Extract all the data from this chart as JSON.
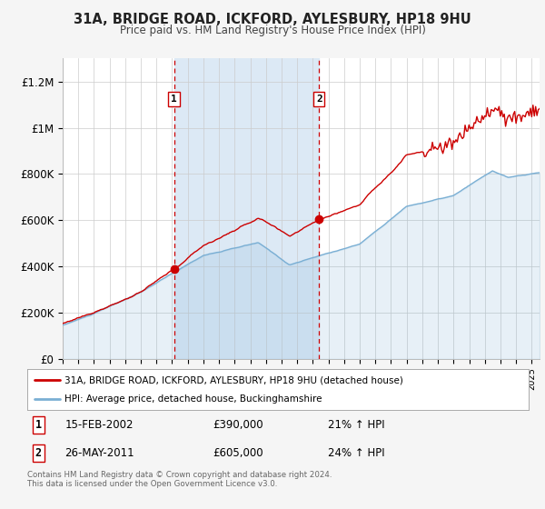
{
  "title": "31A, BRIDGE ROAD, ICKFORD, AYLESBURY, HP18 9HU",
  "subtitle": "Price paid vs. HM Land Registry's House Price Index (HPI)",
  "line1_label": "31A, BRIDGE ROAD, ICKFORD, AYLESBURY, HP18 9HU (detached house)",
  "line2_label": "HPI: Average price, detached house, Buckinghamshire",
  "line1_color": "#cc0000",
  "line2_color": "#7aafd4",
  "shade_color": "#dce9f5",
  "marker_color": "#cc0000",
  "annotation1": {
    "num": "1",
    "date": "15-FEB-2002",
    "price": "£390,000",
    "pct": "21% ↑ HPI"
  },
  "annotation2": {
    "num": "2",
    "date": "26-MAY-2011",
    "price": "£605,000",
    "pct": "24% ↑ HPI"
  },
  "vline1_x": 2002.12,
  "vline2_x": 2011.4,
  "marker1_x": 2002.12,
  "marker1_y": 390000,
  "marker2_x": 2011.4,
  "marker2_y": 605000,
  "ylim": [
    0,
    1300000
  ],
  "xlim": [
    1995.0,
    2025.5
  ],
  "yticks": [
    0,
    200000,
    400000,
    600000,
    800000,
    1000000,
    1200000
  ],
  "ytick_labels": [
    "£0",
    "£200K",
    "£400K",
    "£600K",
    "£800K",
    "£1M",
    "£1.2M"
  ],
  "footer": "Contains HM Land Registry data © Crown copyright and database right 2024.\nThis data is licensed under the Open Government Licence v3.0.",
  "background_color": "#f5f5f5",
  "plot_bg_color": "#ffffff",
  "grid_color": "#cccccc"
}
